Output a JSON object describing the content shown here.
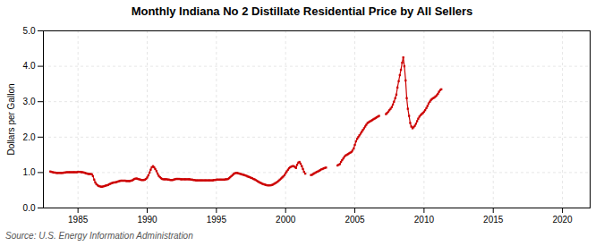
{
  "chart_data": {
    "type": "line",
    "title": "Monthly Indiana No 2 Distillate Residential Price by All Sellers",
    "ylabel": "Dollars per Gallon",
    "annotations": [
      "Source: U.S. Energy Information Administration"
    ],
    "grid": true,
    "xlim": [
      1982.5,
      2022
    ],
    "ylim": [
      0.0,
      5.0
    ],
    "xticks": [
      1985,
      1990,
      1995,
      2000,
      2005,
      2010,
      2015,
      2020
    ],
    "yticks": [
      {
        "value": 0.0,
        "label": "0.0"
      },
      {
        "value": 1.0,
        "label": "1.0"
      },
      {
        "value": 2.0,
        "label": "2.0"
      },
      {
        "value": 3.0,
        "label": "3.0"
      },
      {
        "value": 4.0,
        "label": "4.0"
      },
      {
        "value": 5.0,
        "label": "5.0"
      }
    ],
    "x": [
      1983.0,
      1983.08,
      1983.17,
      1983.25,
      1983.33,
      1983.42,
      1983.5,
      1983.58,
      1983.67,
      1983.75,
      1983.83,
      1983.92,
      1984.0,
      1984.08,
      1984.17,
      1984.25,
      1984.33,
      1984.42,
      1984.5,
      1984.58,
      1984.67,
      1984.75,
      1984.83,
      1984.92,
      1985.0,
      1985.08,
      1985.17,
      1985.25,
      1985.33,
      1985.42,
      1985.5,
      1985.58,
      1985.67,
      1985.75,
      1985.83,
      1985.92,
      1986.0,
      1986.08,
      1986.17,
      1986.25,
      1986.33,
      1986.42,
      1986.5,
      1986.58,
      1986.67,
      1986.75,
      1986.83,
      1986.92,
      1987.0,
      1987.08,
      1987.17,
      1987.25,
      1987.33,
      1987.42,
      1987.5,
      1987.58,
      1987.67,
      1987.75,
      1987.83,
      1987.92,
      1988.0,
      1988.08,
      1988.17,
      1988.25,
      1988.33,
      1988.42,
      1988.5,
      1988.58,
      1988.67,
      1988.75,
      1988.83,
      1988.92,
      1989.0,
      1989.08,
      1989.17,
      1989.25,
      1989.33,
      1989.42,
      1989.5,
      1989.58,
      1989.67,
      1989.75,
      1989.83,
      1989.92,
      1990.0,
      1990.08,
      1990.17,
      1990.25,
      1990.33,
      1990.42,
      1990.5,
      1990.58,
      1990.67,
      1990.75,
      1990.83,
      1990.92,
      1991.0,
      1991.08,
      1991.17,
      1991.25,
      1991.33,
      1991.42,
      1991.5,
      1991.58,
      1991.67,
      1991.75,
      1991.83,
      1991.92,
      1992.0,
      1992.08,
      1992.17,
      1992.25,
      1992.33,
      1992.42,
      1992.5,
      1992.58,
      1992.67,
      1992.75,
      1992.83,
      1992.92,
      1993.0,
      1993.08,
      1993.17,
      1993.25,
      1993.33,
      1993.42,
      1993.5,
      1993.58,
      1993.67,
      1993.75,
      1993.83,
      1993.92,
      1994.0,
      1994.08,
      1994.17,
      1994.25,
      1994.33,
      1994.42,
      1994.5,
      1994.58,
      1994.67,
      1994.75,
      1994.83,
      1994.92,
      1995.0,
      1995.08,
      1995.17,
      1995.25,
      1995.33,
      1995.42,
      1995.5,
      1995.58,
      1995.67,
      1995.75,
      1995.83,
      1995.92,
      1996.0,
      1996.08,
      1996.17,
      1996.25,
      1996.33,
      1996.42,
      1996.5,
      1996.58,
      1996.67,
      1996.75,
      1996.83,
      1996.92,
      1997.0,
      1997.08,
      1997.17,
      1997.25,
      1997.33,
      1997.42,
      1997.5,
      1997.58,
      1997.67,
      1997.75,
      1997.83,
      1997.92,
      1998.0,
      1998.08,
      1998.17,
      1998.25,
      1998.33,
      1998.42,
      1998.5,
      1998.58,
      1998.67,
      1998.75,
      1998.83,
      1998.92,
      1999.0,
      1999.08,
      1999.17,
      1999.25,
      1999.33,
      1999.42,
      1999.5,
      1999.58,
      1999.67,
      1999.75,
      1999.83,
      1999.92,
      2000.0,
      2000.08,
      2000.17,
      2000.25,
      2000.33,
      2000.42,
      2000.5,
      2000.58,
      2000.67,
      2000.75,
      2000.83,
      2000.92,
      2001.0,
      2001.08,
      2001.17,
      2001.25,
      2001.33,
      2001.42,
      null,
      2001.83,
      2001.92,
      2002.0,
      2002.08,
      2002.17,
      2002.25,
      2002.33,
      2002.42,
      2002.5,
      2002.58,
      2002.67,
      2002.75,
      2002.83,
      2002.92,
      null,
      2003.75,
      2003.83,
      2003.92,
      2004.0,
      2004.08,
      2004.17,
      2004.25,
      2004.33,
      2004.42,
      2004.5,
      2004.58,
      2004.67,
      2004.75,
      2004.83,
      2004.92,
      2005.0,
      2005.08,
      2005.17,
      2005.25,
      2005.33,
      2005.42,
      2005.5,
      2005.58,
      2005.67,
      2005.75,
      2005.83,
      2005.92,
      2006.0,
      2006.08,
      2006.17,
      2006.25,
      2006.33,
      2006.42,
      2006.5,
      2006.58,
      2006.67,
      2006.75,
      null,
      2007.25,
      2007.33,
      2007.42,
      2007.5,
      2007.58,
      2007.67,
      2007.75,
      2007.83,
      2007.92,
      2008.0,
      2008.08,
      2008.17,
      2008.25,
      2008.33,
      2008.42,
      2008.5,
      2008.58,
      2008.67,
      2008.75,
      2008.83,
      2008.92,
      2009.0,
      2009.08,
      2009.17,
      2009.25,
      2009.33,
      2009.42,
      2009.5,
      2009.58,
      2009.67,
      2009.75,
      2009.83,
      2009.92,
      2010.0,
      2010.08,
      2010.17,
      2010.25,
      2010.33,
      2010.42,
      2010.5,
      2010.58,
      2010.67,
      2010.75,
      2010.83,
      2010.92,
      2011.0,
      2011.08,
      2011.17,
      2011.25
    ],
    "series": [
      {
        "color": "#cc0000",
        "marker": "square",
        "values": [
          1.03,
          1.02,
          1.01,
          1.0,
          1.0,
          0.99,
          0.99,
          0.99,
          0.99,
          0.99,
          0.99,
          0.99,
          1.0,
          1.0,
          1.01,
          1.01,
          1.01,
          1.01,
          1.01,
          1.01,
          1.01,
          1.01,
          1.01,
          1.01,
          1.02,
          1.02,
          1.02,
          1.01,
          1.01,
          1.0,
          0.99,
          0.98,
          0.97,
          0.96,
          0.96,
          0.96,
          0.95,
          0.9,
          0.8,
          0.72,
          0.67,
          0.64,
          0.62,
          0.61,
          0.6,
          0.6,
          0.61,
          0.62,
          0.63,
          0.64,
          0.65,
          0.67,
          0.68,
          0.7,
          0.71,
          0.72,
          0.72,
          0.73,
          0.74,
          0.75,
          0.76,
          0.77,
          0.77,
          0.77,
          0.77,
          0.77,
          0.76,
          0.76,
          0.76,
          0.76,
          0.77,
          0.78,
          0.8,
          0.82,
          0.83,
          0.83,
          0.82,
          0.81,
          0.8,
          0.79,
          0.79,
          0.79,
          0.8,
          0.82,
          0.86,
          0.92,
          1.0,
          1.08,
          1.15,
          1.18,
          1.15,
          1.1,
          1.04,
          0.97,
          0.91,
          0.87,
          0.84,
          0.82,
          0.81,
          0.81,
          0.81,
          0.81,
          0.8,
          0.8,
          0.79,
          0.79,
          0.79,
          0.8,
          0.81,
          0.82,
          0.82,
          0.82,
          0.82,
          0.81,
          0.81,
          0.81,
          0.81,
          0.81,
          0.81,
          0.81,
          0.81,
          0.81,
          0.8,
          0.8,
          0.79,
          0.79,
          0.78,
          0.78,
          0.78,
          0.78,
          0.78,
          0.78,
          0.78,
          0.78,
          0.78,
          0.78,
          0.78,
          0.78,
          0.78,
          0.78,
          0.78,
          0.78,
          0.79,
          0.79,
          0.8,
          0.8,
          0.8,
          0.8,
          0.8,
          0.8,
          0.8,
          0.8,
          0.81,
          0.81,
          0.82,
          0.84,
          0.87,
          0.9,
          0.93,
          0.96,
          0.98,
          0.99,
          0.99,
          0.98,
          0.97,
          0.96,
          0.95,
          0.94,
          0.93,
          0.92,
          0.91,
          0.89,
          0.88,
          0.87,
          0.85,
          0.84,
          0.82,
          0.81,
          0.79,
          0.77,
          0.75,
          0.73,
          0.71,
          0.7,
          0.68,
          0.67,
          0.66,
          0.65,
          0.64,
          0.64,
          0.64,
          0.64,
          0.65,
          0.66,
          0.68,
          0.7,
          0.72,
          0.74,
          0.77,
          0.8,
          0.83,
          0.86,
          0.89,
          0.93,
          0.98,
          1.03,
          1.08,
          1.12,
          1.15,
          1.17,
          1.18,
          1.18,
          1.16,
          1.13,
          1.22,
          1.28,
          1.3,
          1.25,
          1.18,
          1.1,
          1.02,
          0.97,
          null,
          0.93,
          0.94,
          0.96,
          0.98,
          1.0,
          1.02,
          1.03,
          1.05,
          1.07,
          1.09,
          1.1,
          1.12,
          1.13,
          1.14,
          null,
          1.2,
          1.22,
          1.24,
          1.3,
          1.35,
          1.4,
          1.45,
          1.48,
          1.5,
          1.52,
          1.54,
          1.56,
          1.58,
          1.62,
          1.68,
          1.78,
          1.88,
          1.95,
          2.0,
          2.05,
          2.1,
          2.15,
          2.2,
          2.25,
          2.3,
          2.35,
          2.4,
          2.42,
          2.44,
          2.46,
          2.48,
          2.5,
          2.52,
          2.54,
          2.56,
          2.58,
          2.6,
          null,
          2.65,
          2.68,
          2.72,
          2.76,
          2.8,
          2.85,
          2.92,
          3.0,
          3.1,
          3.2,
          3.4,
          3.58,
          3.75,
          3.9,
          4.1,
          4.25,
          4.0,
          3.6,
          3.1,
          2.8,
          2.6,
          2.4,
          2.3,
          2.25,
          2.28,
          2.32,
          2.38,
          2.45,
          2.52,
          2.58,
          2.62,
          2.65,
          2.68,
          2.72,
          2.76,
          2.82,
          2.88,
          2.95,
          3.0,
          3.05,
          3.08,
          3.1,
          3.12,
          3.15,
          3.18,
          3.22,
          3.28,
          3.33,
          3.35
        ]
      }
    ]
  }
}
